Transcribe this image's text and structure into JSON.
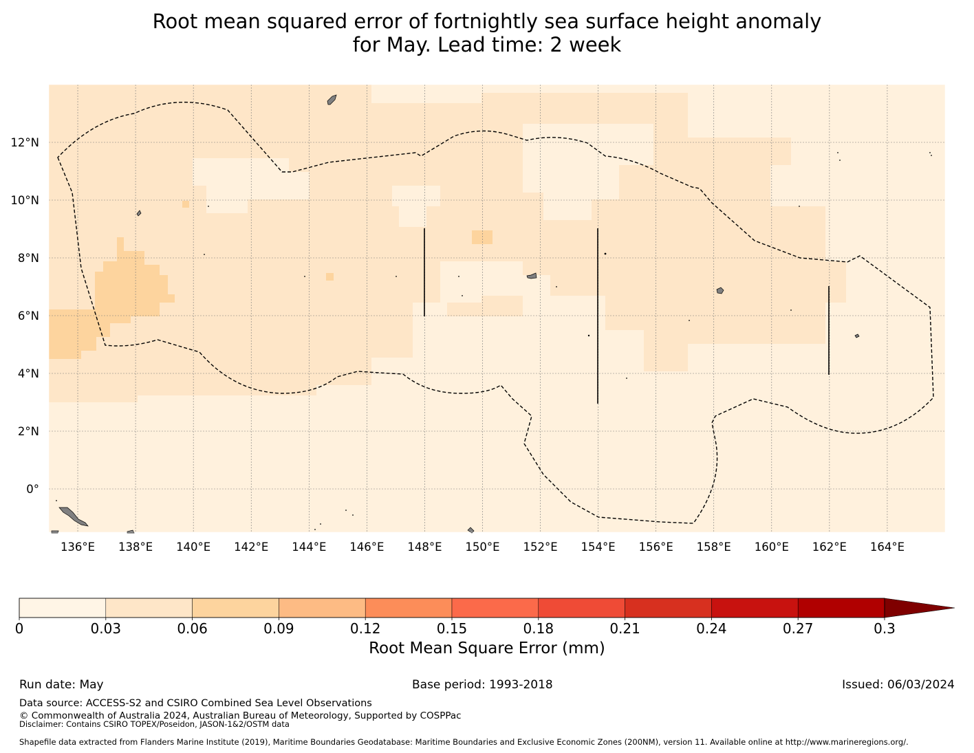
{
  "title": {
    "line1": "Root mean squared error of fortnightly sea surface height anomaly",
    "line2": "for May. Lead time: 2 week"
  },
  "map": {
    "lon_range": [
      135,
      166
    ],
    "lat_range": [
      -1.5,
      14
    ],
    "lon_ticks": [
      "136°E",
      "138°E",
      "140°E",
      "142°E",
      "144°E",
      "146°E",
      "148°E",
      "150°E",
      "152°E",
      "154°E",
      "156°E",
      "158°E",
      "160°E",
      "162°E",
      "164°E"
    ],
    "lat_ticks": [
      "12°N",
      "10°N",
      "8°N",
      "6°N",
      "4°N",
      "2°N",
      "0°"
    ],
    "gridlines": true,
    "background_value_color": "#fff1dd",
    "boundary_style": "dashed",
    "land_color": "#808080"
  },
  "colorbar": {
    "label": "Root Mean Square Error (mm)",
    "ticks": [
      "0",
      "0.03",
      "0.06",
      "0.09",
      "0.12",
      "0.15",
      "0.18",
      "0.21",
      "0.24",
      "0.27",
      "0.3"
    ],
    "colors": [
      "#fff5e6",
      "#fee6c8",
      "#fdd49e",
      "#fdbb84",
      "#fc8d59",
      "#fb6a4a",
      "#ef4b36",
      "#d7301f",
      "#c8120f",
      "#b00000"
    ],
    "extend_color": "#7f0000"
  },
  "footer": {
    "run_date": "Run date: May",
    "base_period": "Base period: 1993-2018",
    "issued": "Issued: 06/03/2024",
    "data_source": "Data source: ACCESS-S2 and CSIRO Combined Sea Level Observations",
    "copyright": "© Commonwealth of Australia 2024, Australian Bureau of Meteorology, Supported by COSPPac",
    "disclaimer": "Disclaimer: Contains CSIRO TOPEX/Poseidon, JASON-1&2/OSTM data",
    "shapefile": "Shapefile data extracted from Flanders Marine Institute (2019), Maritime Boundaries Geodatabase: Maritime Boundaries and Exclusive Economic Zones (200NM), version 11. Available online at http://www.marineregions.org/."
  }
}
